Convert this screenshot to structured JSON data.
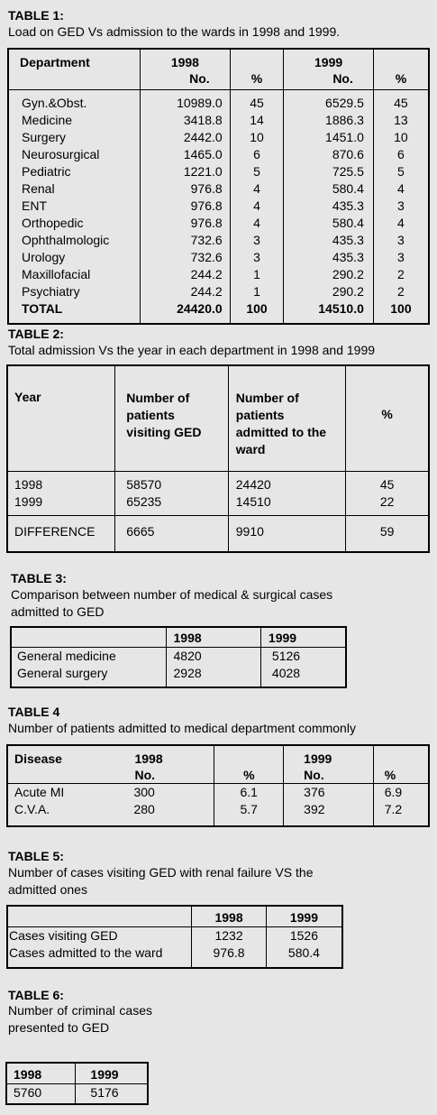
{
  "table1": {
    "title": "TABLE 1:",
    "subtitle": "Load on GED Vs admission to the wards in 1998 and 1999.",
    "head": {
      "dept": "Department",
      "y1998": "1998",
      "y1999": "1999",
      "no": "No.",
      "pct": "%"
    },
    "rows": [
      [
        "Gyn.&Obst.",
        "10989.0",
        "45",
        "6529.5",
        "45"
      ],
      [
        "Medicine",
        "3418.8",
        "14",
        "1886.3",
        "13"
      ],
      [
        "Surgery",
        "2442.0",
        "10",
        "1451.0",
        "10"
      ],
      [
        "Neurosurgical",
        "1465.0",
        "6",
        "870.6",
        "6"
      ],
      [
        "Pediatric",
        "1221.0",
        "5",
        "725.5",
        "5"
      ],
      [
        "Renal",
        "976.8",
        "4",
        "580.4",
        "4"
      ],
      [
        "ENT",
        "976.8",
        "4",
        "435.3",
        "3"
      ],
      [
        "Orthopedic",
        "976.8",
        "4",
        "580.4",
        "4"
      ],
      [
        "Ophthalmologic",
        "732.6",
        "3",
        "435.3",
        "3"
      ],
      [
        "Urology",
        "732.6",
        "3",
        "435.3",
        "3"
      ],
      [
        "Maxillofacial",
        "244.2",
        "1",
        "290.2",
        "2"
      ],
      [
        "Psychiatry",
        "244.2",
        "1",
        "290.2",
        "2"
      ]
    ],
    "total": [
      "TOTAL",
      "24420.0",
      "100",
      "14510.0",
      "100"
    ]
  },
  "table2": {
    "title": "TABLE 2:",
    "subtitle": "Total admission Vs the year in each department in 1998 and 1999",
    "head": {
      "year": "Year",
      "visiting": "Number of patients visiting GED",
      "admitted": "Number of patients admitted to the ward",
      "pct": "%"
    },
    "rows": [
      [
        "1998",
        "58570",
        "24420",
        "45"
      ],
      [
        "1999",
        "65235",
        "14510",
        "22"
      ]
    ],
    "diff": [
      "DIFFERENCE",
      "6665",
      "9910",
      "59"
    ]
  },
  "table3": {
    "title": "TABLE 3:",
    "subtitle": "Comparison between number of medical & surgical cases admitted to GED",
    "head": [
      "",
      "1998",
      "1999"
    ],
    "rows": [
      [
        "General medicine",
        "4820",
        "5126"
      ],
      [
        "General surgery",
        "2928",
        "4028"
      ]
    ]
  },
  "table4": {
    "title": "TABLE 4",
    "subtitle": "Number of patients admitted to medical department commonly",
    "head": {
      "disease": "Disease",
      "y1998": "1998",
      "y1999": "1999",
      "no": "No.",
      "pct": "%"
    },
    "rows": [
      [
        "Acute MI",
        "300",
        "6.1",
        "376",
        "6.9"
      ],
      [
        "C.V.A.",
        "280",
        "5.7",
        "392",
        "7.2"
      ]
    ]
  },
  "table5": {
    "title": "TABLE 5:",
    "subtitle": "Number of cases visiting GED with renal failure VS the admitted ones",
    "head": [
      "",
      "1998",
      "1999"
    ],
    "rows": [
      [
        "Cases visiting GED",
        "1232",
        "1526"
      ],
      [
        "Cases admitted to the ward",
        "976.8",
        "580.4"
      ]
    ]
  },
  "table6": {
    "title": "TABLE 6:",
    "subtitle": "Number of criminal cases presented to GED",
    "head": [
      "1998",
      "1999"
    ],
    "row": [
      "5760",
      "5176"
    ]
  }
}
